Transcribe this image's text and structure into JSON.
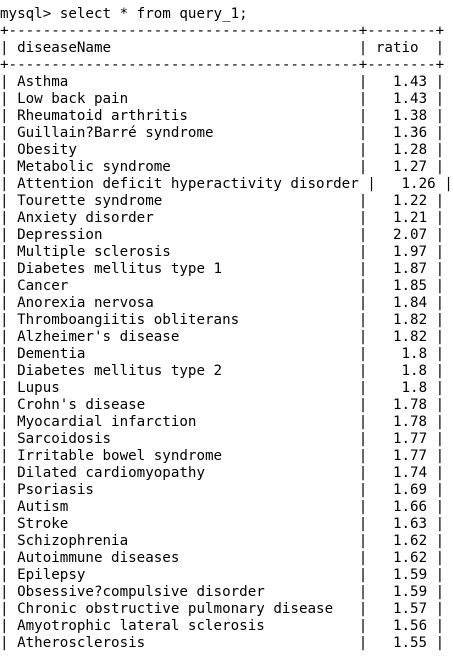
{
  "terminal": {
    "prompt": "mysql> ",
    "command": "select * from query_1;",
    "border_line": "+-----------------------------------------+--------+",
    "headers": {
      "disease_name": "diseaseName",
      "ratio": "ratio"
    },
    "rows": [
      {
        "diseaseName": "Asthma",
        "ratio": "1.43"
      },
      {
        "diseaseName": "Low back pain",
        "ratio": "1.43"
      },
      {
        "diseaseName": "Rheumatoid arthritis",
        "ratio": "1.38"
      },
      {
        "diseaseName": "Guillain?Barré syndrome",
        "ratio": "1.36"
      },
      {
        "diseaseName": "Obesity",
        "ratio": "1.28"
      },
      {
        "diseaseName": "Metabolic syndrome",
        "ratio": "1.27"
      },
      {
        "diseaseName": "Attention deficit hyperactivity disorder",
        "ratio": "1.26"
      },
      {
        "diseaseName": "Tourette syndrome",
        "ratio": "1.22"
      },
      {
        "diseaseName": "Anxiety disorder",
        "ratio": "1.21"
      },
      {
        "diseaseName": "Depression",
        "ratio": "2.07"
      },
      {
        "diseaseName": "Multiple sclerosis",
        "ratio": "1.97"
      },
      {
        "diseaseName": "Diabetes mellitus type 1",
        "ratio": "1.87"
      },
      {
        "diseaseName": "Cancer",
        "ratio": "1.85"
      },
      {
        "diseaseName": "Anorexia nervosa",
        "ratio": "1.84"
      },
      {
        "diseaseName": "Thromboangiitis obliterans",
        "ratio": "1.82"
      },
      {
        "diseaseName": "Alzheimer's disease",
        "ratio": "1.82"
      },
      {
        "diseaseName": "Dementia",
        "ratio": "1.8"
      },
      {
        "diseaseName": "Diabetes mellitus type 2",
        "ratio": "1.8"
      },
      {
        "diseaseName": "Lupus",
        "ratio": "1.8"
      },
      {
        "diseaseName": "Crohn's disease",
        "ratio": "1.78"
      },
      {
        "diseaseName": "Myocardial infarction",
        "ratio": "1.78"
      },
      {
        "diseaseName": "Sarcoidosis",
        "ratio": "1.77"
      },
      {
        "diseaseName": "Irritable bowel syndrome",
        "ratio": "1.77"
      },
      {
        "diseaseName": "Dilated cardiomyopathy",
        "ratio": "1.74"
      },
      {
        "diseaseName": "Psoriasis",
        "ratio": "1.69"
      },
      {
        "diseaseName": "Autism",
        "ratio": "1.66"
      },
      {
        "diseaseName": "Stroke",
        "ratio": "1.63"
      },
      {
        "diseaseName": "Schizophrenia",
        "ratio": "1.62"
      },
      {
        "diseaseName": "Autoimmune diseases",
        "ratio": "1.62"
      },
      {
        "diseaseName": "Epilepsy",
        "ratio": "1.59"
      },
      {
        "diseaseName": "Obsessive?compulsive disorder",
        "ratio": "1.59"
      },
      {
        "diseaseName": "Chronic obstructive pulmonary disease",
        "ratio": "1.57"
      },
      {
        "diseaseName": "Amyotrophic lateral sclerosis",
        "ratio": "1.56"
      },
      {
        "diseaseName": "Atherosclerosis",
        "ratio": "1.55"
      }
    ]
  }
}
